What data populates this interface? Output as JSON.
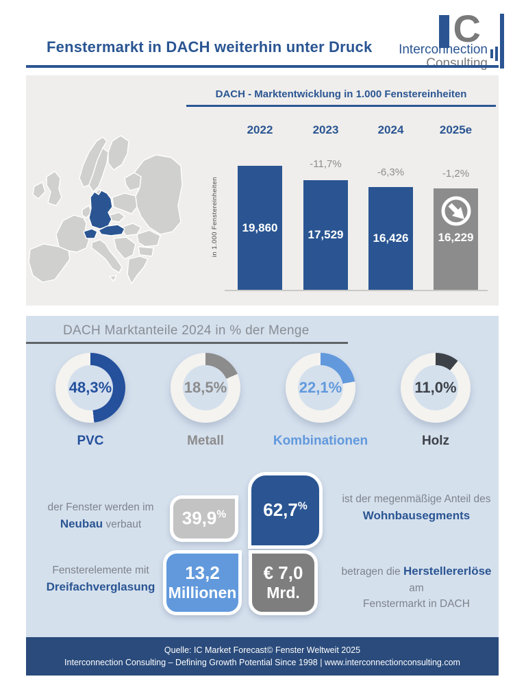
{
  "header": {
    "title": "Fenstermarkt in DACH weiterhin unter Druck",
    "logo": {
      "monogram_c": "C",
      "name_line1": "Interconnection",
      "name_line2": "Consulting"
    }
  },
  "theme": {
    "primary_blue": "#2a5592",
    "light_blue": "#6199dc",
    "mid_gray": "#8c8c8c",
    "dark_gray": "#3d4248",
    "panel_gray": "#efeeec",
    "panel_blue": "#d5e0ed",
    "footer_blue": "#2a4b7c"
  },
  "chart_data": [
    {
      "type": "bar",
      "title": "DACH - Marktentwicklung in 1.000 Fenstereinheiten",
      "ylabel": "in 1.000 Fenstereinheiten",
      "categories": [
        "2022",
        "2023",
        "2024",
        "2025e"
      ],
      "values": [
        19860,
        17529,
        16426,
        16229
      ],
      "value_labels": [
        "19,860",
        "17,529",
        "16,426",
        "16,229"
      ],
      "change_labels": [
        "",
        "-11,7%",
        "-6,3%",
        "-1,2%"
      ],
      "bar_colors": [
        "#2a5592",
        "#2a5592",
        "#2a5592",
        "#8c8c8c"
      ],
      "grid": false,
      "decoration": "down-right-arrow-icon on 2025e bar"
    },
    {
      "type": "pie",
      "title": "DACH Marktanteile 2024 in % der Menge",
      "categories": [
        "PVC",
        "Metall",
        "Kombinationen",
        "Holz"
      ],
      "values": [
        48.3,
        18.5,
        22.1,
        11.0
      ],
      "value_labels": [
        "48,3%",
        "18,5%",
        "22,1%",
        "11,0%"
      ],
      "colors": [
        "#24509c",
        "#8c8c8c",
        "#6199dc",
        "#3d4248"
      ],
      "base_ring_color": "#f4f3ef"
    }
  ],
  "facts": {
    "neubau": {
      "tile_value": "39,9",
      "tile_unit": "%",
      "tile_color": "#c3c3c3",
      "pre": "der Fenster werden im",
      "strong": "Neubau",
      "post": "verbaut"
    },
    "wohnbau": {
      "tile_value": "62,7",
      "tile_unit": "%",
      "tile_color": "#2a5592",
      "pre": "ist der megenmäßige Anteil des",
      "strong": "Wohnbausegments"
    },
    "dreifach": {
      "tile_value": "13,2",
      "tile_unit": "Millionen",
      "tile_color": "#6199dc",
      "pre": "Fensterelemente mit",
      "strong": "Dreifachverglasung"
    },
    "erloese": {
      "tile_value": "€ 7,0",
      "tile_unit": "Mrd.",
      "tile_color": "#7e7e7e",
      "pre": "betragen die",
      "strong": "Herstellererlöse",
      "post": "am",
      "line2": "Fenstermarkt in DACH"
    }
  },
  "footer": {
    "line1": "Quelle: IC Market Forecast© Fenster Weltweit 2025",
    "line2_left": "Interconnection Consulting – Defining Growth Potential Since 1998 | ",
    "website": "www.interconnectionconsulting.com"
  }
}
